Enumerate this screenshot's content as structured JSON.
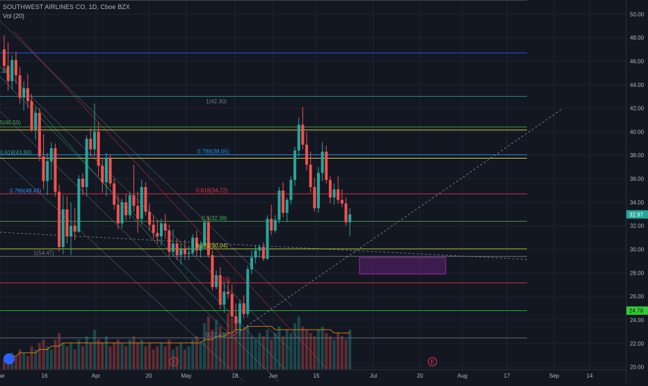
{
  "header": {
    "symbol_line": "SOUTHWEST AIRLINES CO, 1D, Cboe BZX",
    "volume_label": "Vol (20)"
  },
  "colors": {
    "background": "#131722",
    "grid": "#1f2331",
    "up": "#26a69a",
    "down": "#ef5350",
    "price_tag": "#26a69a",
    "support_tag": "#32cd32"
  },
  "chart_data": {
    "type": "candlestick",
    "y_axis": {
      "range": [
        19.8,
        51.2
      ],
      "ticks": [
        "20.00",
        "22.00",
        "24.00",
        "26.00",
        "28.00",
        "30.00",
        "32.00",
        "34.00",
        "36.00",
        "38.00",
        "40.00",
        "42.00",
        "44.00",
        "46.00",
        "48.00",
        "50.00"
      ]
    },
    "x_axis": {
      "ticks": [
        "Mar",
        "16",
        "Apr",
        "20",
        "May",
        "18",
        "Jun",
        "15",
        "Jul",
        "20",
        "Aug",
        "17",
        "Sep",
        "14"
      ]
    },
    "last_price": "32.97",
    "support_price": "24.79",
    "ohlc": [
      [
        47.0,
        48.2,
        45.0,
        45.6
      ],
      [
        45.6,
        47.6,
        43.5,
        44.3
      ],
      [
        44.3,
        46.5,
        43.6,
        46.1
      ],
      [
        46.1,
        46.8,
        44.1,
        44.8
      ],
      [
        44.8,
        45.5,
        42.4,
        42.9
      ],
      [
        42.9,
        44.3,
        41.8,
        43.7
      ],
      [
        43.7,
        44.9,
        42.0,
        42.6
      ],
      [
        42.6,
        43.2,
        40.0,
        40.2
      ],
      [
        40.2,
        42.1,
        39.3,
        41.6
      ],
      [
        41.6,
        42.0,
        37.5,
        37.9
      ],
      [
        37.9,
        39.8,
        35.1,
        35.8
      ],
      [
        35.8,
        38.2,
        34.6,
        37.5
      ],
      [
        37.5,
        39.1,
        35.9,
        38.6
      ],
      [
        38.6,
        39.0,
        34.5,
        34.9
      ],
      [
        34.9,
        35.5,
        29.8,
        30.2
      ],
      [
        30.2,
        34.6,
        29.6,
        33.4
      ],
      [
        33.4,
        34.5,
        30.5,
        31.1
      ],
      [
        31.1,
        34.0,
        29.5,
        32.0
      ],
      [
        32.0,
        33.5,
        30.8,
        31.5
      ],
      [
        31.5,
        36.3,
        31.4,
        36.0
      ],
      [
        36.0,
        36.5,
        34.6,
        35.3
      ],
      [
        35.3,
        39.7,
        34.5,
        39.4
      ],
      [
        39.4,
        40.3,
        37.9,
        38.5
      ],
      [
        38.5,
        42.4,
        37.9,
        40.0
      ],
      [
        40.0,
        40.8,
        36.2,
        37.1
      ],
      [
        37.1,
        37.7,
        34.8,
        35.7
      ],
      [
        35.7,
        38.2,
        34.5,
        37.8
      ],
      [
        37.8,
        38.1,
        35.3,
        35.6
      ],
      [
        35.6,
        36.0,
        33.4,
        33.8
      ],
      [
        33.8,
        34.6,
        31.7,
        32.2
      ],
      [
        32.2,
        34.3,
        31.8,
        34.0
      ],
      [
        34.0,
        34.7,
        32.5,
        32.9
      ],
      [
        32.9,
        34.9,
        32.6,
        34.6
      ],
      [
        34.6,
        37.2,
        33.2,
        33.7
      ],
      [
        33.7,
        34.9,
        31.4,
        32.6
      ],
      [
        32.6,
        35.9,
        32.1,
        35.3
      ],
      [
        35.3,
        35.7,
        32.9,
        33.2
      ],
      [
        33.2,
        33.9,
        31.6,
        32.1
      ],
      [
        32.1,
        32.9,
        30.9,
        31.4
      ],
      [
        31.4,
        32.5,
        30.5,
        31.1
      ],
      [
        31.1,
        32.6,
        30.3,
        32.2
      ],
      [
        32.2,
        33.0,
        30.9,
        31.6
      ],
      [
        31.6,
        32.1,
        29.4,
        29.8
      ],
      [
        29.8,
        31.7,
        29.4,
        30.5
      ],
      [
        30.5,
        30.9,
        29.1,
        29.5
      ],
      [
        29.5,
        30.5,
        28.7,
        30.0
      ],
      [
        30.0,
        30.8,
        29.1,
        29.6
      ],
      [
        29.6,
        30.3,
        29.1,
        29.7
      ],
      [
        29.7,
        31.3,
        29.5,
        31.0
      ],
      [
        31.0,
        31.6,
        29.4,
        29.9
      ],
      [
        29.9,
        30.7,
        29.3,
        30.4
      ],
      [
        30.4,
        32.5,
        30.1,
        32.3
      ],
      [
        32.3,
        32.8,
        29.3,
        29.5
      ],
      [
        29.5,
        29.9,
        26.5,
        26.8
      ],
      [
        26.8,
        28.2,
        26.6,
        27.8
      ],
      [
        27.8,
        28.5,
        24.9,
        25.3
      ],
      [
        25.3,
        27.2,
        24.6,
        26.4
      ],
      [
        26.4,
        27.3,
        25.8,
        26.2
      ],
      [
        26.2,
        27.0,
        24.0,
        24.3
      ],
      [
        24.3,
        25.4,
        23.2,
        23.7
      ],
      [
        23.7,
        25.7,
        22.6,
        25.4
      ],
      [
        25.4,
        26.1,
        24.1,
        24.5
      ],
      [
        24.5,
        28.6,
        24.2,
        28.3
      ],
      [
        28.3,
        29.9,
        27.9,
        29.3
      ],
      [
        29.3,
        30.3,
        28.8,
        29.9
      ],
      [
        29.9,
        30.4,
        29.3,
        30.2
      ],
      [
        30.2,
        30.6,
        29.0,
        29.2
      ],
      [
        29.2,
        32.9,
        29.1,
        32.6
      ],
      [
        32.6,
        33.8,
        31.2,
        31.6
      ],
      [
        31.6,
        32.9,
        31.4,
        32.5
      ],
      [
        32.5,
        35.3,
        32.2,
        35.0
      ],
      [
        35.0,
        35.7,
        32.7,
        33.1
      ],
      [
        33.1,
        34.4,
        32.3,
        34.2
      ],
      [
        34.2,
        36.2,
        33.8,
        35.9
      ],
      [
        35.9,
        38.7,
        35.4,
        38.4
      ],
      [
        38.4,
        41.2,
        37.9,
        40.6
      ],
      [
        40.6,
        42.1,
        38.5,
        38.9
      ],
      [
        38.9,
        40.0,
        36.7,
        37.2
      ],
      [
        37.2,
        38.3,
        34.8,
        35.3
      ],
      [
        35.3,
        36.1,
        33.2,
        33.5
      ],
      [
        33.5,
        37.0,
        33.1,
        36.5
      ],
      [
        36.5,
        39.1,
        35.8,
        38.3
      ],
      [
        38.3,
        38.8,
        35.6,
        35.9
      ],
      [
        35.9,
        36.2,
        33.9,
        34.4
      ],
      [
        34.4,
        35.6,
        33.8,
        35.1
      ],
      [
        35.1,
        36.2,
        33.9,
        34.2
      ],
      [
        34.2,
        35.1,
        33.6,
        33.9
      ],
      [
        33.9,
        34.4,
        32.0,
        32.3
      ],
      [
        32.3,
        33.5,
        31.1,
        32.97
      ]
    ],
    "volume": [
      3,
      4,
      5,
      4,
      6,
      5,
      4,
      7,
      6,
      8,
      9,
      7,
      6,
      9,
      11,
      8,
      7,
      8,
      6,
      9,
      7,
      10,
      8,
      12,
      9,
      8,
      10,
      7,
      8,
      9,
      8,
      7,
      9,
      10,
      8,
      9,
      7,
      8,
      6,
      7,
      8,
      7,
      9,
      6,
      7,
      8,
      6,
      7,
      9,
      10,
      8,
      14,
      16,
      12,
      15,
      13,
      11,
      17,
      15,
      16,
      14,
      12,
      13,
      10,
      9,
      11,
      10,
      12,
      9,
      11,
      13,
      10,
      12,
      11,
      14,
      16,
      13,
      12,
      11,
      10,
      12,
      13,
      11,
      10,
      9,
      11,
      10,
      9,
      12
    ],
    "volume_ma": [
      4,
      4,
      4,
      4,
      5,
      5,
      5,
      5,
      5,
      6,
      6,
      6,
      7,
      7,
      7,
      8,
      8,
      8,
      8,
      8,
      8,
      8,
      8,
      8,
      8,
      8,
      8,
      8,
      8,
      8,
      8,
      8,
      8,
      8,
      8,
      8,
      8,
      8,
      8,
      8,
      8,
      8,
      8,
      8,
      8,
      8,
      8,
      8,
      8,
      8,
      8,
      9,
      9,
      9,
      10,
      10,
      10,
      11,
      11,
      12,
      12,
      12,
      13,
      13,
      13,
      13,
      13,
      13,
      13,
      12,
      12,
      12,
      12,
      12,
      12,
      12,
      12,
      12,
      12,
      12,
      12,
      12,
      12,
      12,
      11,
      11,
      11,
      11,
      11
    ],
    "horizontal_levels": [
      {
        "price": 51.2,
        "color": "#787b86"
      },
      {
        "price": 46.7,
        "color": "#2962ff"
      },
      {
        "price": 43.0,
        "color": "#26a69a"
      },
      {
        "price": 40.4,
        "color": "#4caf50"
      },
      {
        "price": 40.15,
        "color": "#ffeb3b"
      },
      {
        "price": 38.05,
        "color": "#2196f3"
      },
      {
        "price": 37.75,
        "color": "#ffeb3b"
      },
      {
        "price": 34.72,
        "color": "#f23645"
      },
      {
        "price": 32.38,
        "color": "#4caf50"
      },
      {
        "price": 30.04,
        "color": "#cddc39"
      },
      {
        "price": 29.4,
        "color": "#787b86"
      },
      {
        "price": 27.15,
        "color": "#f23645"
      },
      {
        "price": 24.79,
        "color": "#32cd32"
      },
      {
        "price": 22.47,
        "color": "#787b86"
      }
    ],
    "fib_labels": [
      {
        "text": "1(42.30)",
        "price": 42.3,
        "color": "#787b86"
      },
      {
        "text": "0.786(38.05)",
        "price": 38.05,
        "color": "#2196f3"
      },
      {
        "text": "0.618(34.72)",
        "price": 34.72,
        "color": "#f23645"
      },
      {
        "text": "0.5(32.38)",
        "price": 32.38,
        "color": "#4caf50"
      },
      {
        "text": "0.382(30.04)",
        "price": 30.04,
        "color": "#cddc39"
      },
      {
        "text": "(27.15)",
        "price": 27.15,
        "color": "#f23645"
      },
      {
        "text": "0(22.47)",
        "price": 22.47,
        "color": "#787b86"
      },
      {
        "text": ".21)",
        "price": 44.9,
        "color": "#26a69a"
      },
      {
        "text": "5(40.50)",
        "price": 40.5,
        "color": "#4caf50"
      },
      {
        "text": "0.618(43.80)",
        "price": 37.95,
        "color": "#26a69a"
      },
      {
        "text": "0.786(48.49)",
        "price": 34.7,
        "color": "#2196f3"
      },
      {
        "text": "1(54.47)",
        "price": 29.4,
        "color": "#787b86"
      }
    ],
    "zone": {
      "x0": "Jul",
      "x1": "Aug",
      "y0": 27.9,
      "y1": 29.3,
      "color": "#9c27b0"
    },
    "events": [
      "E",
      "E"
    ]
  }
}
